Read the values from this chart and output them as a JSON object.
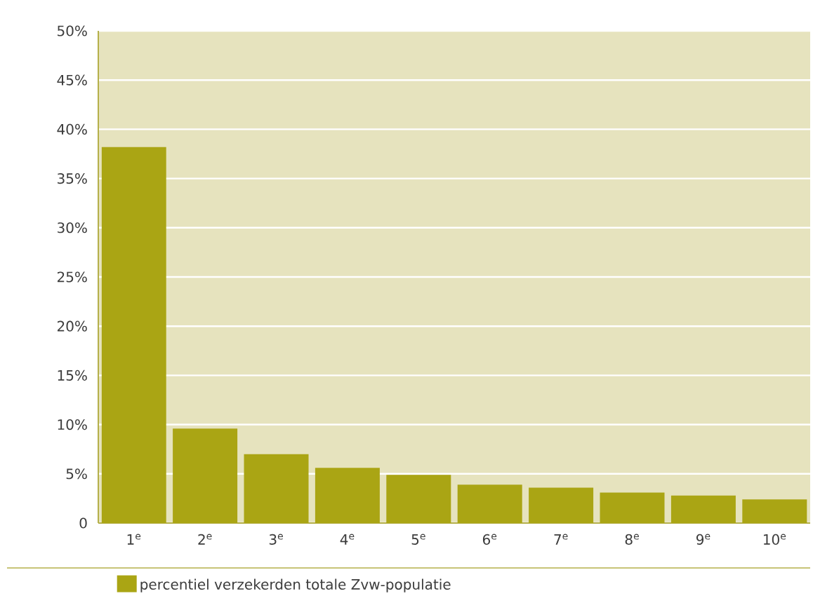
{
  "chart_data": {
    "type": "bar",
    "categories": [
      "1$^{e}$",
      "2$^{e}$",
      "3$^{e}$",
      "4$^{e}$",
      "5$^{e}$",
      "6$^{e}$",
      "7$^{e}$",
      "8$^{e}$",
      "9$^{e}$",
      "10$^{e}$"
    ],
    "series": [
      {
        "name": "percentiel verzekerden totale Zvw-populatie",
        "color": "#aaa514",
        "values": [
          38.2,
          9.6,
          7.0,
          5.6,
          4.9,
          3.9,
          3.6,
          3.1,
          2.8,
          2.4
        ]
      }
    ],
    "ylim": [
      0,
      50
    ],
    "yticks": [
      {
        "value": 0,
        "label": "0"
      },
      {
        "value": 5,
        "label": "5%"
      },
      {
        "value": 10,
        "label": "10%"
      },
      {
        "value": 15,
        "label": "15%"
      },
      {
        "value": 20,
        "label": "20%"
      },
      {
        "value": 25,
        "label": "25%"
      },
      {
        "value": 30,
        "label": "30%"
      },
      {
        "value": 35,
        "label": "35%"
      },
      {
        "value": 40,
        "label": "40%"
      },
      {
        "value": 45,
        "label": "45%"
      },
      {
        "value": 50,
        "label": "50%"
      }
    ],
    "grid": "y",
    "legend": "bottom"
  }
}
